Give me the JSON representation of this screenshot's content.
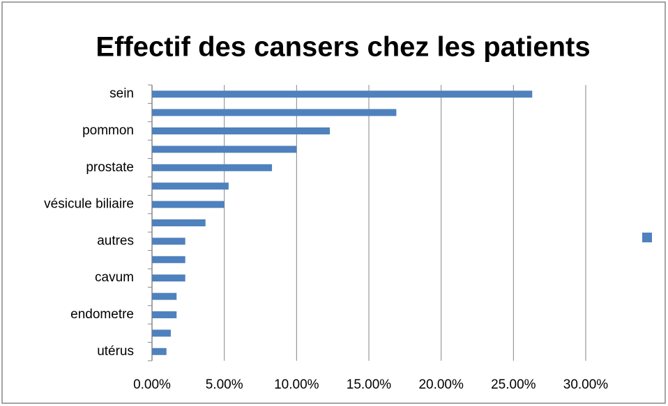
{
  "chart_data": {
    "type": "bar",
    "orientation": "horizontal",
    "title": "Effectif des cansers chez les patients",
    "categories": [
      "sein",
      null,
      "pommon",
      null,
      "prostate",
      null,
      "vésicule biliaire",
      null,
      "autres",
      null,
      "cavum",
      null,
      "endometre",
      null,
      "utérus"
    ],
    "values": [
      26.3,
      16.9,
      12.3,
      10.0,
      8.3,
      5.3,
      5.0,
      3.7,
      2.3,
      2.3,
      2.3,
      1.7,
      1.7,
      1.3,
      1.0
    ],
    "color": "#4f81bd",
    "xlim": [
      0,
      30
    ],
    "xticks": [
      {
        "value": 0,
        "label": "0.00%"
      },
      {
        "value": 5,
        "label": "5.00%"
      },
      {
        "value": 10,
        "label": "10.00%"
      },
      {
        "value": 15,
        "label": "15.00%"
      },
      {
        "value": 20,
        "label": "20.00%"
      },
      {
        "value": 25,
        "label": "25.00%"
      },
      {
        "value": 30,
        "label": "30.00%"
      }
    ],
    "grid": true
  }
}
